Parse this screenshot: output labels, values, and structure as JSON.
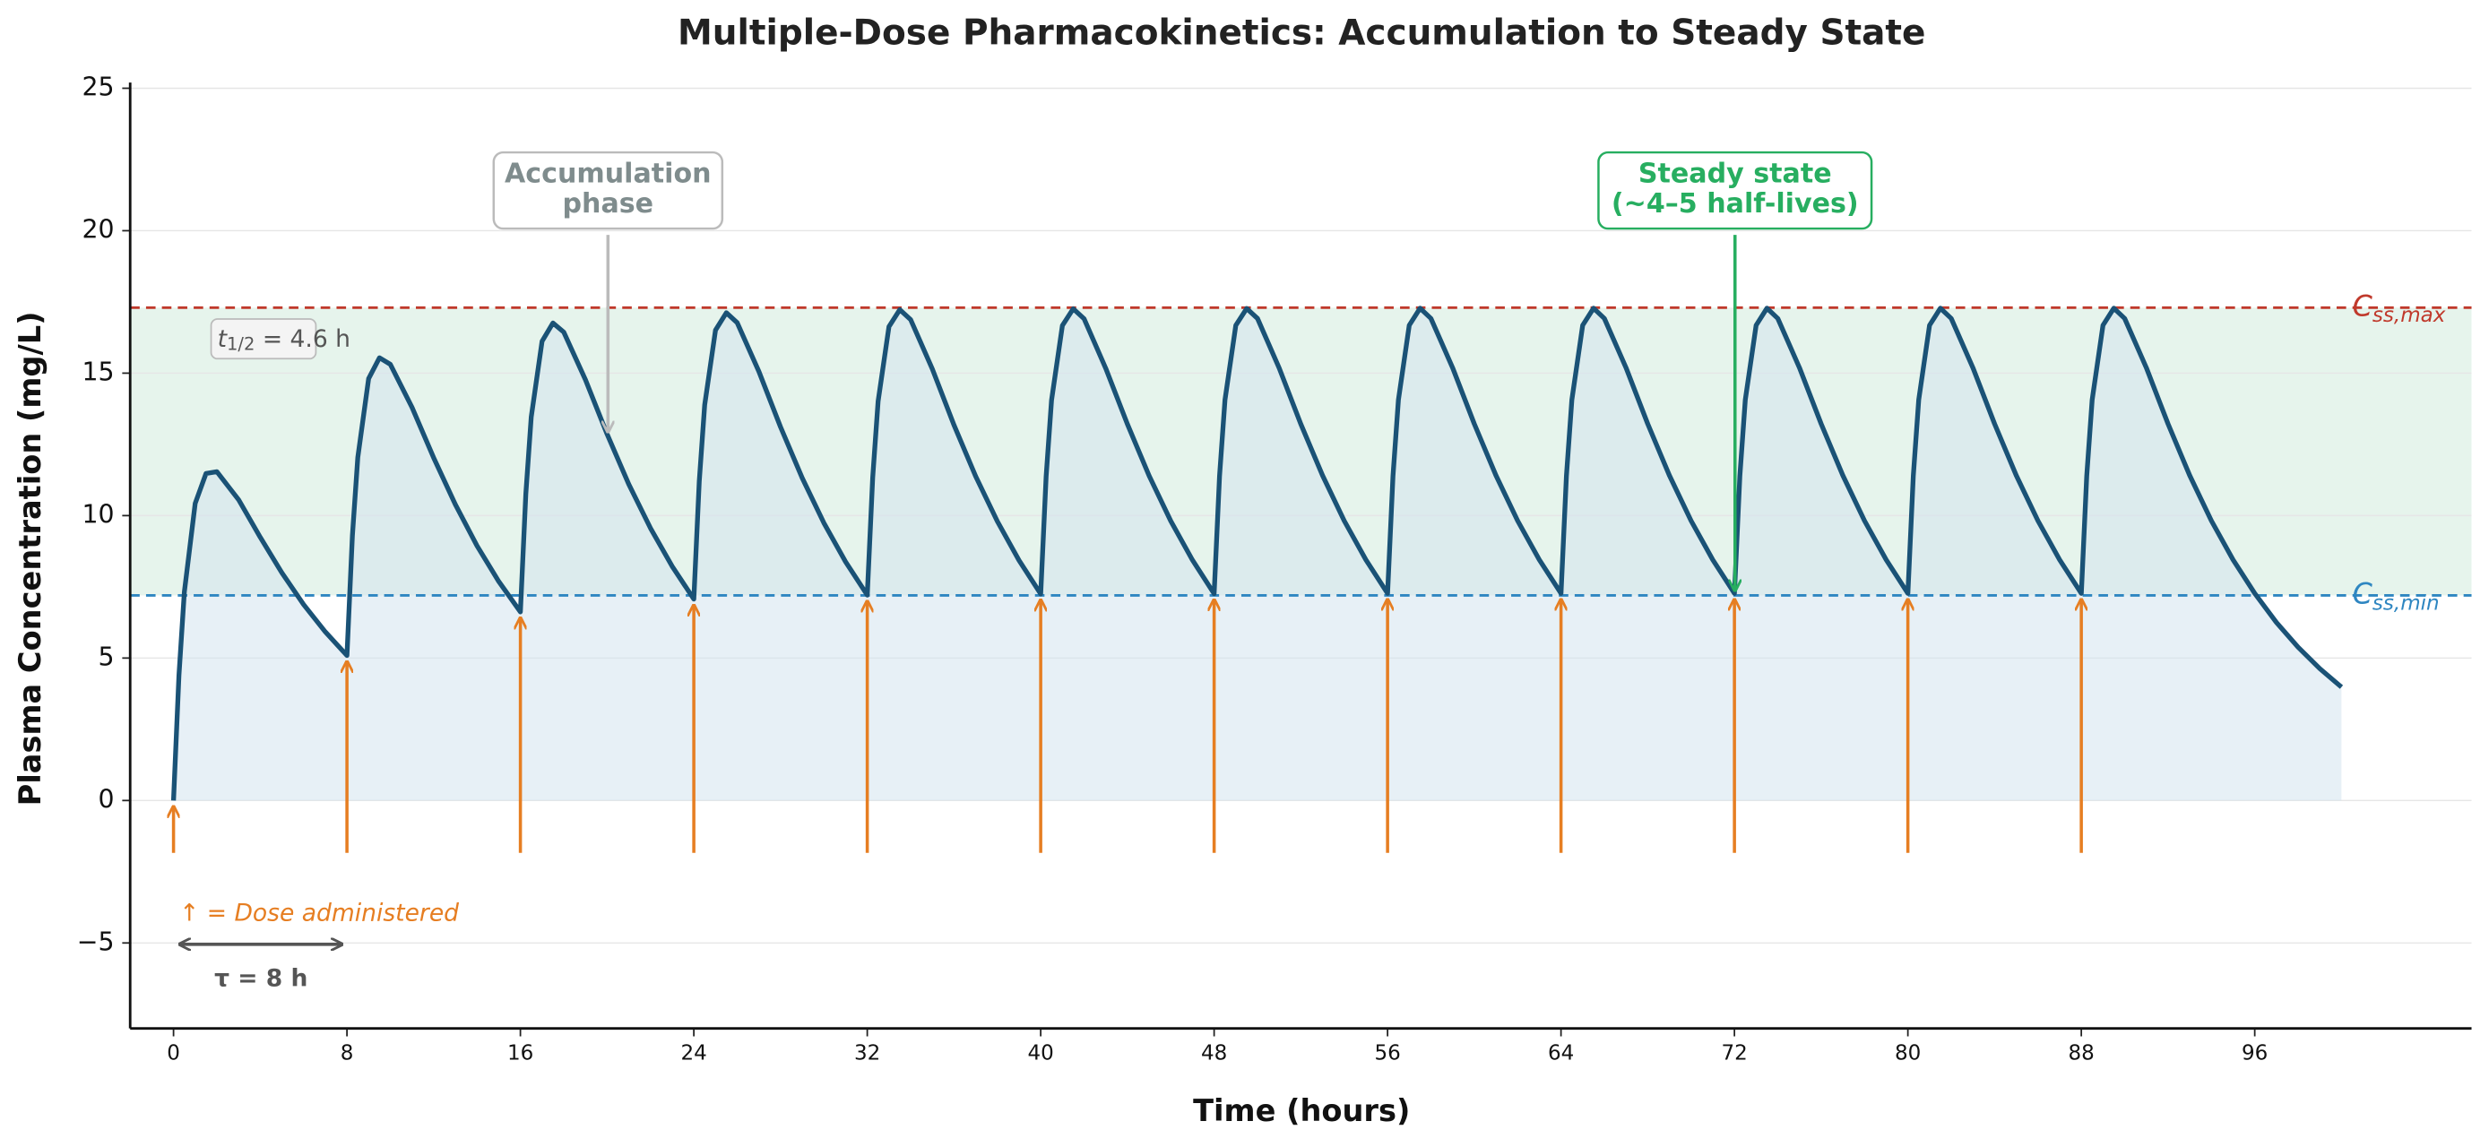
{
  "chart_data": {
    "type": "line",
    "title": "Multiple-Dose Pharmacokinetics: Accumulation to Steady State",
    "xlabel": "Time (hours)",
    "ylabel": "Plasma Concentration (mg/L)",
    "xlim": [
      -2,
      106
    ],
    "ylim": [
      -8,
      25.2
    ],
    "xticks": [
      0,
      8,
      16,
      24,
      32,
      40,
      48,
      56,
      64,
      72,
      80,
      88,
      96
    ],
    "yticks": [
      {
        "value": -5,
        "label": "−5"
      },
      0,
      5,
      10,
      15,
      20,
      25
    ],
    "grid": true,
    "series": [
      {
        "color": "#1a5276",
        "fill": "#d4e3ef",
        "x": [
          0,
          0.25,
          0.5,
          1,
          1.5,
          2,
          3,
          4,
          5,
          6,
          7,
          8,
          8.25,
          8.5,
          9,
          9.5,
          10,
          11,
          12,
          13,
          14,
          15,
          16,
          16.25,
          16.5,
          17,
          17.5,
          18,
          19,
          20,
          21,
          22,
          23,
          24,
          24.25,
          24.5,
          25,
          25.5,
          26,
          27,
          28,
          29,
          30,
          31,
          32,
          32.25,
          32.5,
          33,
          33.5,
          34,
          35,
          36,
          37,
          38,
          39,
          40,
          40.25,
          40.5,
          41,
          41.5,
          42,
          43,
          44,
          45,
          46,
          47,
          48,
          48.25,
          48.5,
          49,
          49.5,
          50,
          51,
          52,
          53,
          54,
          55,
          56,
          56.25,
          56.5,
          57,
          57.5,
          58,
          59,
          60,
          61,
          62,
          63,
          64,
          64.25,
          64.5,
          65,
          65.5,
          66,
          67,
          68,
          69,
          70,
          71,
          72,
          72.25,
          72.5,
          73,
          73.5,
          74,
          75,
          76,
          77,
          78,
          79,
          80,
          80.25,
          80.5,
          81,
          81.5,
          82,
          83,
          84,
          85,
          86,
          87,
          88,
          88.25,
          88.5,
          89,
          89.5,
          90,
          91,
          92,
          93,
          94,
          95,
          96,
          97,
          98,
          99,
          100
        ],
        "values": [
          0,
          4.39,
          7.32,
          10.43,
          11.48,
          11.54,
          10.56,
          9.24,
          7.99,
          6.88,
          5.92,
          5.09,
          9.29,
          12.04,
          14.81,
          15.54,
          15.31,
          13.8,
          12.03,
          10.39,
          8.94,
          7.69,
          6.62,
          10.76,
          13.46,
          16.12,
          16.76,
          16.44,
          14.77,
          12.86,
          11.1,
          9.56,
          8.22,
          7.07,
          11.2,
          13.88,
          16.51,
          17.12,
          16.77,
          15.06,
          13.11,
          11.32,
          9.74,
          8.38,
          7.21,
          11.33,
          14.01,
          16.63,
          17.23,
          16.88,
          15.15,
          13.18,
          11.38,
          9.8,
          8.43,
          7.25,
          11.37,
          14.05,
          16.67,
          17.26,
          16.91,
          15.17,
          13.21,
          11.4,
          9.81,
          8.44,
          7.26,
          11.39,
          14.06,
          16.68,
          17.27,
          16.92,
          15.18,
          13.21,
          11.41,
          9.82,
          8.45,
          7.27,
          11.39,
          14.06,
          16.68,
          17.28,
          16.92,
          15.19,
          13.22,
          11.41,
          9.82,
          8.45,
          7.27,
          11.39,
          14.06,
          16.68,
          17.28,
          16.92,
          15.19,
          13.22,
          11.41,
          9.82,
          8.45,
          7.27,
          11.39,
          14.06,
          16.68,
          17.28,
          16.92,
          15.19,
          13.22,
          11.41,
          9.82,
          8.45,
          7.27,
          11.39,
          14.06,
          16.68,
          17.28,
          16.92,
          15.19,
          13.22,
          11.41,
          9.82,
          8.45,
          7.27,
          11.39,
          14.06,
          16.68,
          17.28,
          16.92,
          15.19,
          13.22,
          11.41,
          9.82,
          8.45,
          7.27,
          6.25,
          5.38,
          4.63,
          3.98
        ]
      }
    ],
    "reference_lines": [
      {
        "value": 17.3,
        "label": "C",
        "subscript": "ss,max",
        "color": "#c0392b"
      },
      {
        "value": 7.2,
        "label": "C",
        "subscript": "ss,min",
        "color": "#2e86c1"
      }
    ],
    "band_color": "#e6f4ec",
    "doses": [
      0,
      8,
      16,
      24,
      32,
      40,
      48,
      56,
      64,
      72,
      80,
      88
    ],
    "dose_color": "#e67e22",
    "dose_note": "↑ = Dose administered",
    "tau_label": "τ = 8 h",
    "half_life": {
      "symbol": "t",
      "subscript": "1/2",
      "text": " = 4.6 h"
    },
    "annotations": [
      {
        "lines": [
          "Accumulation",
          "phase"
        ],
        "color": "#7f8c8d"
      },
      {
        "lines": [
          "Steady state",
          "(~4–5 half-lives)"
        ],
        "color": "#27ae60"
      }
    ]
  }
}
